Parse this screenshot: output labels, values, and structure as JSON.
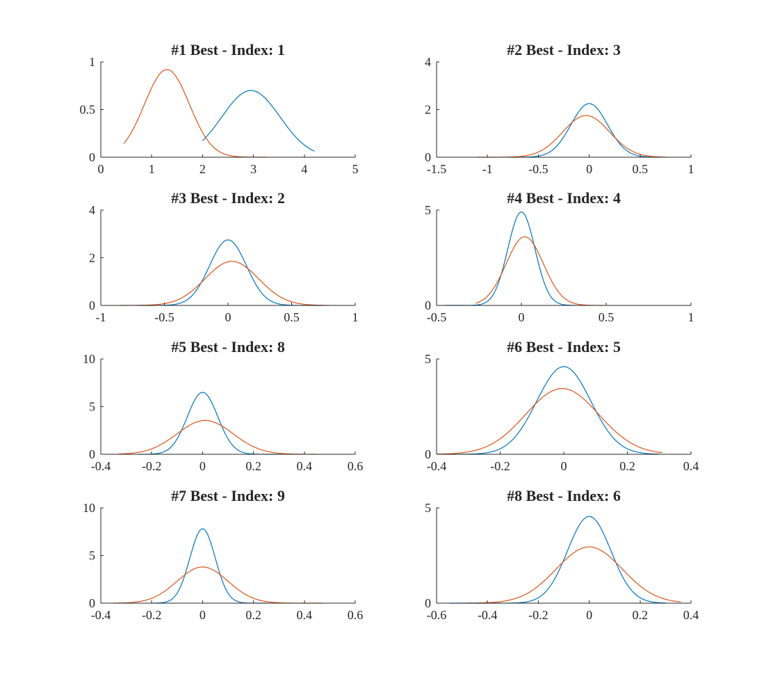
{
  "colors": {
    "series1": "#0072BD",
    "series2": "#D95319",
    "axis": "#262626",
    "background": "#ffffff"
  },
  "chart_data": [
    {
      "type": "line",
      "title": "#1 Best - Index: 1",
      "xlim": [
        0,
        5
      ],
      "ylim": [
        0,
        1
      ],
      "xticks": [
        0,
        1,
        2,
        3,
        4,
        5
      ],
      "xtick_labels": [
        "0",
        "1",
        "2",
        "3",
        "4",
        "5"
      ],
      "yticks": [
        0,
        0.5,
        1
      ],
      "ytick_labels": [
        "0",
        "0.5",
        "1"
      ],
      "series": [
        {
          "color": "#0072BD",
          "curve": "gaussian",
          "peak_x": 2.95,
          "peak_y": 0.7,
          "sigma": 0.57,
          "x_range": [
            2.0,
            4.2
          ]
        },
        {
          "color": "#D95319",
          "curve": "gaussian",
          "peak_x": 1.3,
          "peak_y": 0.92,
          "sigma": 0.44,
          "x_range": [
            0.45,
            3.25
          ]
        }
      ]
    },
    {
      "type": "line",
      "title": "#2 Best - Index: 3",
      "xlim": [
        -1.5,
        1
      ],
      "ylim": [
        0,
        4
      ],
      "xticks": [
        -1.5,
        -1,
        -0.5,
        0,
        0.5,
        1
      ],
      "xtick_labels": [
        "-1.5",
        "-1",
        "-0.5",
        "0",
        "0.5",
        "1"
      ],
      "yticks": [
        0,
        2,
        4
      ],
      "ytick_labels": [
        "0",
        "2",
        "4"
      ],
      "series": [
        {
          "color": "#0072BD",
          "curve": "gaussian",
          "peak_x": 0.0,
          "peak_y": 2.25,
          "sigma": 0.18,
          "x_range": [
            -0.75,
            0.65
          ]
        },
        {
          "color": "#D95319",
          "curve": "gaussian",
          "peak_x": -0.03,
          "peak_y": 1.75,
          "sigma": 0.23,
          "x_range": [
            -1.1,
            0.75
          ]
        }
      ]
    },
    {
      "type": "line",
      "title": "#3 Best - Index: 2",
      "xlim": [
        -1,
        1
      ],
      "ylim": [
        0,
        4
      ],
      "xticks": [
        -1,
        -0.5,
        0,
        0.5,
        1
      ],
      "xtick_labels": [
        "-1",
        "-0.5",
        "0",
        "0.5",
        "1"
      ],
      "yticks": [
        0,
        2,
        4
      ],
      "ytick_labels": [
        "0",
        "2",
        "4"
      ],
      "series": [
        {
          "color": "#0072BD",
          "curve": "gaussian",
          "peak_x": 0.0,
          "peak_y": 2.75,
          "sigma": 0.145,
          "x_range": [
            -0.7,
            0.75
          ]
        },
        {
          "color": "#D95319",
          "curve": "gaussian",
          "peak_x": 0.03,
          "peak_y": 1.85,
          "sigma": 0.21,
          "x_range": [
            -0.85,
            0.8
          ]
        }
      ]
    },
    {
      "type": "line",
      "title": "#4 Best - Index: 4",
      "xlim": [
        -0.5,
        1
      ],
      "ylim": [
        0,
        5
      ],
      "xticks": [
        -0.5,
        0,
        0.5,
        1
      ],
      "xtick_labels": [
        "-0.5",
        "0",
        "0.5",
        "1"
      ],
      "yticks": [
        0,
        5
      ],
      "ytick_labels": [
        "0",
        "5"
      ],
      "series": [
        {
          "color": "#0072BD",
          "curve": "gaussian",
          "peak_x": 0.0,
          "peak_y": 4.9,
          "sigma": 0.08,
          "x_range": [
            -0.45,
            0.32
          ]
        },
        {
          "color": "#D95319",
          "curve": "gaussian",
          "peak_x": 0.02,
          "peak_y": 3.6,
          "sigma": 0.11,
          "x_range": [
            -0.27,
            0.48
          ]
        }
      ]
    },
    {
      "type": "line",
      "title": "#5 Best - Index: 8",
      "xlim": [
        -0.4,
        0.6
      ],
      "ylim": [
        0,
        10
      ],
      "xticks": [
        -0.4,
        -0.2,
        0,
        0.2,
        0.4,
        0.6
      ],
      "xtick_labels": [
        "-0.4",
        "-0.2",
        "0",
        "0.2",
        "0.4",
        "0.6"
      ],
      "yticks": [
        0,
        5,
        10
      ],
      "ytick_labels": [
        "0",
        "5",
        "10"
      ],
      "series": [
        {
          "color": "#0072BD",
          "curve": "gaussian",
          "peak_x": 0.0,
          "peak_y": 6.5,
          "sigma": 0.06,
          "x_range": [
            -0.25,
            0.3
          ]
        },
        {
          "color": "#D95319",
          "curve": "gaussian",
          "peak_x": 0.01,
          "peak_y": 3.55,
          "sigma": 0.11,
          "x_range": [
            -0.33,
            0.45
          ]
        }
      ]
    },
    {
      "type": "line",
      "title": "#6 Best - Index: 5",
      "xlim": [
        -0.4,
        0.4
      ],
      "ylim": [
        0,
        5
      ],
      "xticks": [
        -0.4,
        -0.2,
        0,
        0.2,
        0.4
      ],
      "xtick_labels": [
        "-0.4",
        "-0.2",
        "0",
        "0.2",
        "0.4"
      ],
      "yticks": [
        0,
        5
      ],
      "ytick_labels": [
        "0",
        "5"
      ],
      "series": [
        {
          "color": "#0072BD",
          "curve": "gaussian",
          "peak_x": 0.0,
          "peak_y": 4.6,
          "sigma": 0.085,
          "x_range": [
            -0.37,
            0.3
          ]
        },
        {
          "color": "#D95319",
          "curve": "gaussian",
          "peak_x": -0.005,
          "peak_y": 3.45,
          "sigma": 0.115,
          "x_range": [
            -0.4,
            0.31
          ]
        }
      ]
    },
    {
      "type": "line",
      "title": "#7 Best - Index: 9",
      "xlim": [
        -0.4,
        0.6
      ],
      "ylim": [
        0,
        10
      ],
      "xticks": [
        -0.4,
        -0.2,
        0,
        0.2,
        0.4,
        0.6
      ],
      "xtick_labels": [
        "-0.4",
        "-0.2",
        "0",
        "0.2",
        "0.4",
        "0.6"
      ],
      "yticks": [
        0,
        5,
        10
      ],
      "ytick_labels": [
        "0",
        "5",
        "10"
      ],
      "series": [
        {
          "color": "#0072BD",
          "curve": "gaussian",
          "peak_x": 0.0,
          "peak_y": 7.8,
          "sigma": 0.05,
          "x_range": [
            -0.2,
            0.25
          ]
        },
        {
          "color": "#D95319",
          "curve": "gaussian",
          "peak_x": 0.0,
          "peak_y": 3.8,
          "sigma": 0.1,
          "x_range": [
            -0.35,
            0.47
          ]
        }
      ]
    },
    {
      "type": "line",
      "title": "#8 Best - Index: 6",
      "xlim": [
        -0.6,
        0.4
      ],
      "ylim": [
        0,
        5
      ],
      "xticks": [
        -0.6,
        -0.4,
        -0.2,
        0,
        0.2,
        0.4
      ],
      "xtick_labels": [
        "-0.6",
        "-0.4",
        "-0.2",
        "0",
        "0.2",
        "0.4"
      ],
      "yticks": [
        0,
        5
      ],
      "ytick_labels": [
        "0",
        "5"
      ],
      "series": [
        {
          "color": "#0072BD",
          "curve": "gaussian",
          "peak_x": 0.0,
          "peak_y": 4.55,
          "sigma": 0.085,
          "x_range": [
            -0.55,
            0.3
          ]
        },
        {
          "color": "#D95319",
          "curve": "gaussian",
          "peak_x": 0.0,
          "peak_y": 2.95,
          "sigma": 0.13,
          "x_range": [
            -0.48,
            0.36
          ]
        }
      ]
    }
  ]
}
